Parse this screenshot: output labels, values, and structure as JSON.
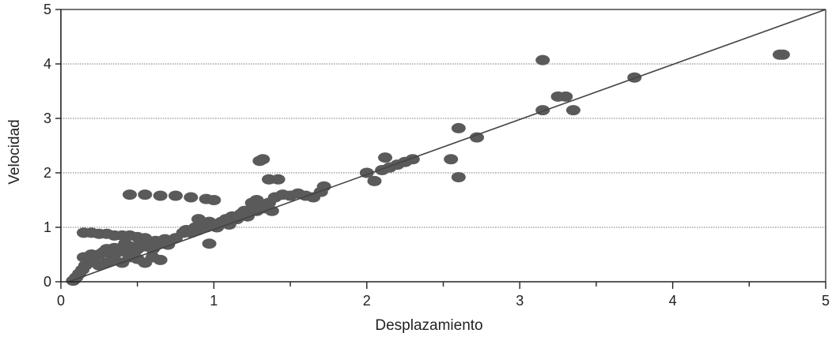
{
  "chart_data": {
    "type": "scatter",
    "xlabel": "Desplazamiento",
    "ylabel": "Velocidad",
    "xlim": [
      0,
      5
    ],
    "ylim": [
      0,
      5
    ],
    "xticks": [
      "0",
      "1",
      "2",
      "3",
      "4",
      "5"
    ],
    "yticks": [
      "0",
      "1",
      "2",
      "3",
      "4",
      "5"
    ],
    "grid": "horizontal dotted",
    "point_color": "#5a5a5a",
    "line_color": "#444444",
    "trend_line": {
      "x": [
        0.05,
        5.0
      ],
      "y": [
        0.0,
        5.0
      ]
    },
    "series": [
      {
        "points": [
          [
            0.08,
            0.02
          ],
          [
            0.1,
            0.08
          ],
          [
            0.12,
            0.15
          ],
          [
            0.14,
            0.22
          ],
          [
            0.16,
            0.3
          ],
          [
            0.18,
            0.35
          ],
          [
            0.2,
            0.4
          ],
          [
            0.22,
            0.45
          ],
          [
            0.25,
            0.5
          ],
          [
            0.28,
            0.55
          ],
          [
            0.3,
            0.6
          ],
          [
            0.33,
            0.5
          ],
          [
            0.35,
            0.62
          ],
          [
            0.38,
            0.55
          ],
          [
            0.4,
            0.6
          ],
          [
            0.42,
            0.7
          ],
          [
            0.45,
            0.65
          ],
          [
            0.48,
            0.55
          ],
          [
            0.5,
            0.6
          ],
          [
            0.52,
            0.72
          ],
          [
            0.55,
            0.65
          ],
          [
            0.58,
            0.7
          ],
          [
            0.6,
            0.6
          ],
          [
            0.62,
            0.75
          ],
          [
            0.65,
            0.7
          ],
          [
            0.68,
            0.78
          ],
          [
            0.7,
            0.68
          ],
          [
            0.15,
            0.45
          ],
          [
            0.2,
            0.5
          ],
          [
            0.25,
            0.3
          ],
          [
            0.3,
            0.35
          ],
          [
            0.35,
            0.4
          ],
          [
            0.4,
            0.35
          ],
          [
            0.45,
            0.45
          ],
          [
            0.5,
            0.42
          ],
          [
            0.55,
            0.35
          ],
          [
            0.6,
            0.45
          ],
          [
            0.65,
            0.4
          ],
          [
            0.15,
            0.9
          ],
          [
            0.2,
            0.9
          ],
          [
            0.25,
            0.88
          ],
          [
            0.3,
            0.88
          ],
          [
            0.35,
            0.85
          ],
          [
            0.4,
            0.85
          ],
          [
            0.45,
            0.85
          ],
          [
            0.5,
            0.82
          ],
          [
            0.55,
            0.8
          ],
          [
            0.45,
            1.6
          ],
          [
            0.55,
            1.6
          ],
          [
            0.65,
            1.58
          ],
          [
            0.75,
            1.58
          ],
          [
            0.85,
            1.55
          ],
          [
            0.95,
            1.52
          ],
          [
            1.0,
            1.5
          ],
          [
            0.75,
            0.8
          ],
          [
            0.8,
            0.9
          ],
          [
            0.82,
            0.95
          ],
          [
            0.85,
            0.9
          ],
          [
            0.88,
            1.0
          ],
          [
            0.9,
            0.95
          ],
          [
            0.92,
            1.05
          ],
          [
            0.95,
            1.0
          ],
          [
            0.97,
            1.1
          ],
          [
            1.0,
            1.05
          ],
          [
            1.02,
            1.0
          ],
          [
            1.05,
            1.1
          ],
          [
            1.08,
            1.15
          ],
          [
            1.1,
            1.05
          ],
          [
            1.12,
            1.2
          ],
          [
            1.15,
            1.15
          ],
          [
            1.18,
            1.25
          ],
          [
            1.2,
            1.3
          ],
          [
            1.22,
            1.2
          ],
          [
            1.25,
            1.35
          ],
          [
            1.28,
            1.3
          ],
          [
            1.3,
            1.4
          ],
          [
            1.33,
            1.35
          ],
          [
            1.36,
            1.45
          ],
          [
            1.38,
            1.3
          ],
          [
            0.9,
            1.15
          ],
          [
            0.97,
            0.7
          ],
          [
            1.25,
            1.45
          ],
          [
            1.28,
            1.5
          ],
          [
            1.4,
            1.55
          ],
          [
            1.45,
            1.6
          ],
          [
            1.5,
            1.58
          ],
          [
            1.55,
            1.62
          ],
          [
            1.6,
            1.58
          ],
          [
            1.65,
            1.55
          ],
          [
            1.7,
            1.65
          ],
          [
            1.72,
            1.75
          ],
          [
            1.3,
            2.22
          ],
          [
            1.32,
            2.25
          ],
          [
            1.36,
            1.88
          ],
          [
            1.42,
            1.88
          ],
          [
            2.0,
            2.0
          ],
          [
            2.05,
            1.85
          ],
          [
            2.1,
            2.05
          ],
          [
            2.15,
            2.1
          ],
          [
            2.2,
            2.15
          ],
          [
            2.25,
            2.2
          ],
          [
            2.3,
            2.25
          ],
          [
            2.12,
            2.28
          ],
          [
            2.55,
            2.25
          ],
          [
            2.6,
            1.92
          ],
          [
            2.6,
            2.82
          ],
          [
            2.72,
            2.65
          ],
          [
            3.15,
            4.07
          ],
          [
            3.15,
            3.15
          ],
          [
            3.25,
            3.4
          ],
          [
            3.3,
            3.4
          ],
          [
            3.35,
            3.15
          ],
          [
            3.75,
            3.75
          ],
          [
            4.7,
            4.17
          ],
          [
            4.72,
            4.17
          ]
        ]
      }
    ]
  }
}
